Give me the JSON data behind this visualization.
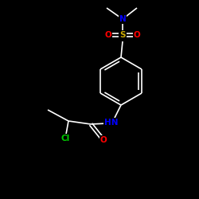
{
  "background_color": "#000000",
  "bond_color": "#ffffff",
  "atom_colors": {
    "N": "#0000ff",
    "O": "#ff0000",
    "S": "#ccaa00",
    "Cl": "#00cc00",
    "C": "#ffffff",
    "H": "#ffffff"
  },
  "figsize": [
    2.5,
    2.5
  ],
  "dpi": 100,
  "lw": 1.2
}
